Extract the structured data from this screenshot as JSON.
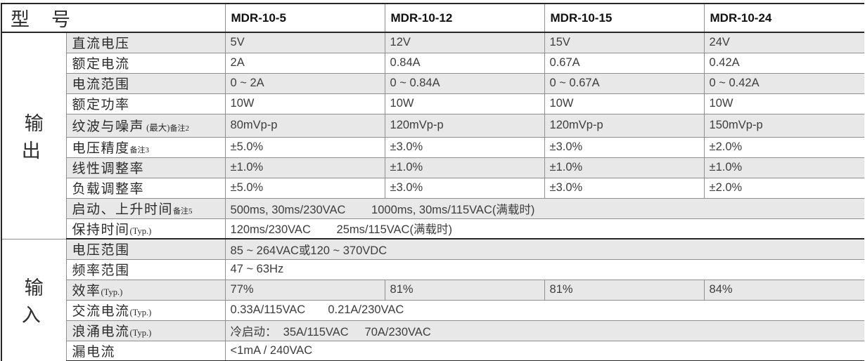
{
  "header": {
    "model_label": "型 号",
    "models": [
      "MDR-10-5",
      "MDR-10-12",
      "MDR-10-15",
      "MDR-10-24"
    ]
  },
  "sections": [
    {
      "name": "输 出",
      "rows": [
        {
          "label": "直流电压",
          "values": [
            "5V",
            "12V",
            "15V",
            "24V"
          ]
        },
        {
          "label": "额定电流",
          "values": [
            "2A",
            "0.84A",
            "0.67A",
            "0.42A"
          ]
        },
        {
          "label": "电流范围",
          "values": [
            "0 ~ 2A",
            "0 ~ 0.84A",
            "0 ~ 0.67A",
            "0 ~ 0.42A"
          ]
        },
        {
          "label": "额定功率",
          "values": [
            "10W",
            "10W",
            "10W",
            "10W"
          ]
        },
        {
          "label": "纹波与噪声",
          "note": " (最大)",
          "ref": "备注2",
          "values": [
            "80mVp-p",
            "120mVp-p",
            "120mVp-p",
            "150mVp-p"
          ]
        },
        {
          "label": "电压精度",
          "ref": "备注3",
          "values": [
            "±5.0%",
            "±3.0%",
            "±3.0%",
            "±2.0%"
          ]
        },
        {
          "label": "线性调整率",
          "values": [
            "±1.0%",
            "±1.0%",
            "±1.0%",
            "±1.0%"
          ]
        },
        {
          "label": "负载调整率",
          "values": [
            "±5.0%",
            "±3.0%",
            "±3.0%",
            "±2.0%"
          ]
        },
        {
          "label": "启动、上升时间",
          "ref": "备注5",
          "span": "500ms, 30ms/230VAC        1000ms, 30ms/115VAC(满载时)"
        },
        {
          "label": "保持时间",
          "note": "(Typ.)",
          "span": "120ms/230VAC        25ms/115VAC(满载时)"
        }
      ]
    },
    {
      "name": "输 入",
      "rows": [
        {
          "label": "电压范围",
          "span": "85 ~ 264VAC或120 ~ 370VDC"
        },
        {
          "label": "频率范围",
          "span": "47 ~ 63Hz"
        },
        {
          "label": "效率",
          "note": "(Typ.)",
          "values": [
            "77%",
            "81%",
            "81%",
            "84%"
          ]
        },
        {
          "label": "交流电流",
          "note": "(Typ.)",
          "span": "0.33A/115VAC       0.21A/230VAC"
        },
        {
          "label": "浪涌电流",
          "note": "(Typ.)",
          "span": "冷启动：  35A/115VAC     70A/230VAC"
        },
        {
          "label": "漏电流",
          "span": "<1mA / 240VAC"
        }
      ]
    }
  ],
  "colors": {
    "row_shade": "#e8e8e8",
    "inner_border": "#8f8f8f",
    "outer_border": "#262626"
  }
}
